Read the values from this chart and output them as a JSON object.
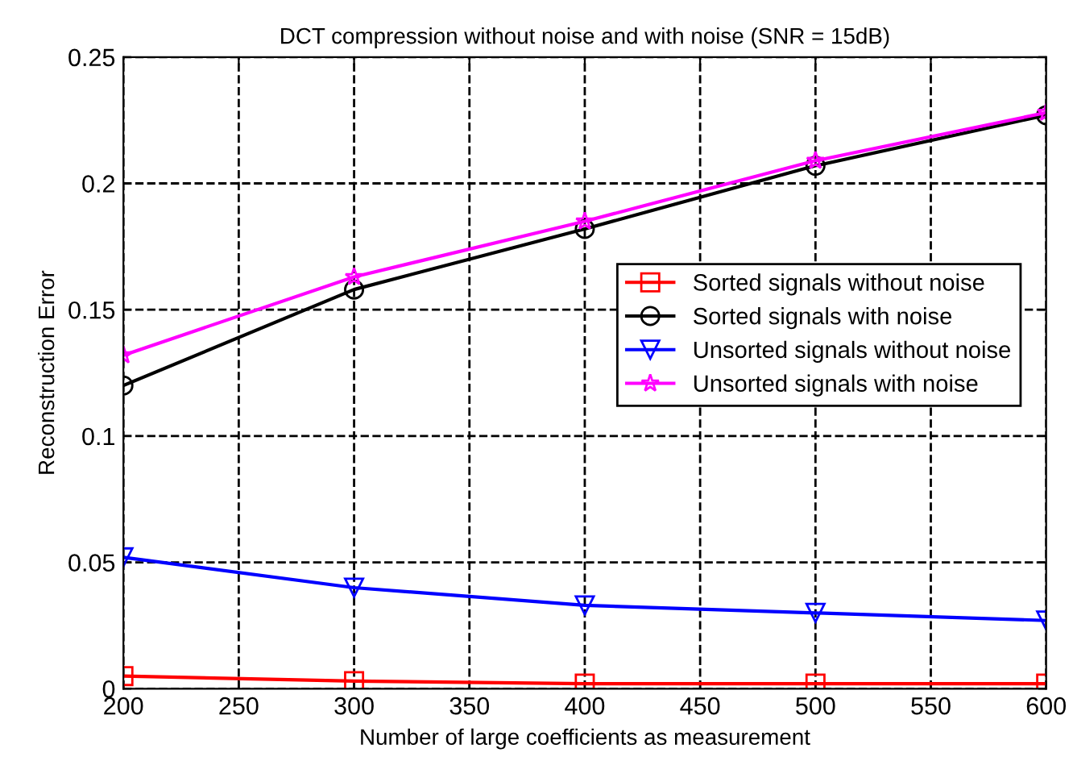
{
  "chart_data": {
    "type": "line",
    "title": "DCT compression without noise and with noise (SNR = 15dB)",
    "xlabel": "Number of large coefficients as measurement",
    "ylabel": "Reconstruction Error",
    "x": [
      200,
      300,
      400,
      500,
      600
    ],
    "series": [
      {
        "name": "Sorted signals without noise",
        "color": "#ff0000",
        "marker": "square",
        "values": [
          0.005,
          0.003,
          0.002,
          0.002,
          0.002
        ]
      },
      {
        "name": "Sorted signals with noise",
        "color": "#000000",
        "marker": "circle",
        "values": [
          0.12,
          0.158,
          0.182,
          0.207,
          0.227
        ]
      },
      {
        "name": "Unsorted signals without noise",
        "color": "#0000ff",
        "marker": "triangle",
        "values": [
          0.052,
          0.04,
          0.033,
          0.03,
          0.027
        ]
      },
      {
        "name": "Unsorted signals with noise",
        "color": "#ff00ff",
        "marker": "star",
        "values": [
          0.132,
          0.163,
          0.185,
          0.209,
          0.228
        ]
      }
    ],
    "xlim": [
      200,
      600
    ],
    "xticks": [
      200,
      250,
      300,
      350,
      400,
      450,
      500,
      550,
      600
    ],
    "ylim": [
      0,
      0.25
    ],
    "yticks": [
      0,
      0.05,
      0.1,
      0.15,
      0.2,
      0.25
    ],
    "grid": true,
    "legend": "right",
    "line_style": "solid"
  }
}
